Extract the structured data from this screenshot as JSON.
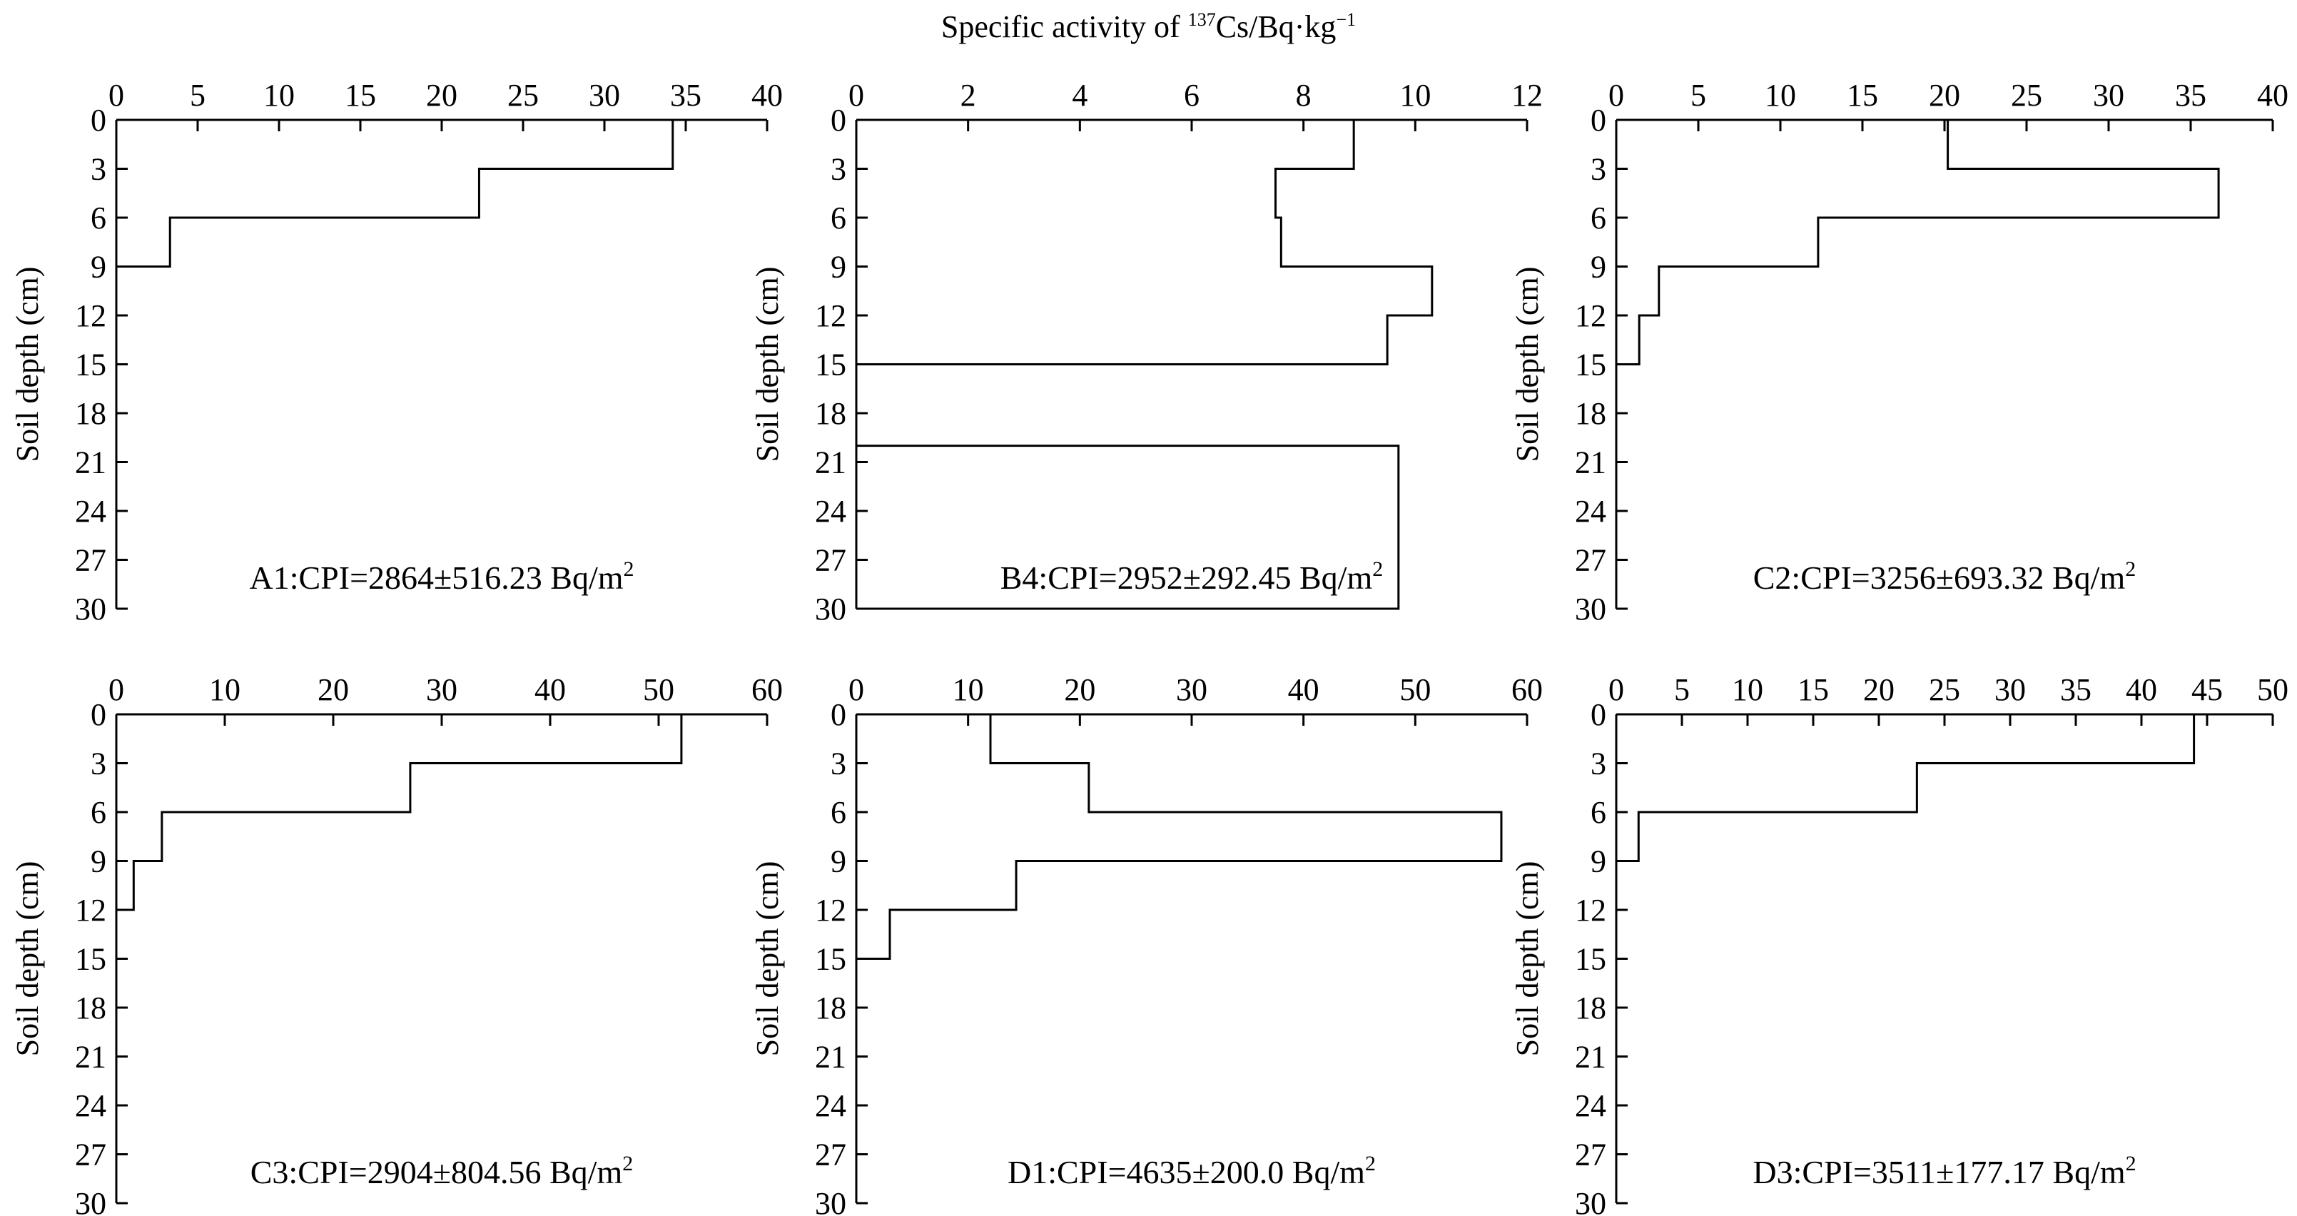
{
  "figure": {
    "title_prefix": "Specific activity of ",
    "title_isotope_mass": "137",
    "title_isotope_rest": "Cs/Bq·kg",
    "title_unit_exp": "−1"
  },
  "chart_data": [
    {
      "id": "A1",
      "type": "line",
      "step": true,
      "xlim": [
        0,
        40
      ],
      "xticks": [
        0,
        5,
        10,
        15,
        20,
        25,
        30,
        35,
        40
      ],
      "ylim": [
        0,
        30
      ],
      "yticks": [
        0,
        3,
        6,
        9,
        12,
        15,
        18,
        21,
        24,
        27,
        30
      ],
      "ylabel": "Soil depth (cm)",
      "annotation": "A1:CPI=2864±516.23 Bq/m",
      "annotation_sup": "2",
      "segments": [
        {
          "from": 0,
          "to": 3,
          "value": 34.2
        },
        {
          "from": 3,
          "to": 6,
          "value": 22.3
        },
        {
          "from": 6,
          "to": 9,
          "value": 3.3
        }
      ]
    },
    {
      "id": "B4",
      "type": "line",
      "step": true,
      "xlim": [
        0,
        12
      ],
      "xticks": [
        0,
        2,
        4,
        6,
        8,
        10,
        12
      ],
      "ylim": [
        0,
        30
      ],
      "yticks": [
        0,
        3,
        6,
        9,
        12,
        15,
        18,
        21,
        24,
        27,
        30
      ],
      "ylabel": "Soil depth (cm)",
      "annotation": "B4:CPI=2952±292.45 Bq/m",
      "annotation_sup": "2",
      "segments": [
        {
          "from": 0,
          "to": 3,
          "value": 8.9
        },
        {
          "from": 3,
          "to": 6,
          "value": 7.5
        },
        {
          "from": 6,
          "to": 9,
          "value": 7.6
        },
        {
          "from": 9,
          "to": 12,
          "value": 10.3
        },
        {
          "from": 12,
          "to": 15,
          "value": 9.5
        },
        {
          "from": 20,
          "to": 30,
          "value": 9.7
        }
      ]
    },
    {
      "id": "C2",
      "type": "line",
      "step": true,
      "xlim": [
        0,
        40
      ],
      "xticks": [
        0,
        5,
        10,
        15,
        20,
        25,
        30,
        35,
        40
      ],
      "ylim": [
        0,
        30
      ],
      "yticks": [
        0,
        3,
        6,
        9,
        12,
        15,
        18,
        21,
        24,
        27,
        30
      ],
      "ylabel": "Soil depth (cm)",
      "annotation": "C2:CPI=3256±693.32 Bq/m",
      "annotation_sup": "2",
      "segments": [
        {
          "from": 0,
          "to": 3,
          "value": 20.2
        },
        {
          "from": 3,
          "to": 6,
          "value": 36.7
        },
        {
          "from": 6,
          "to": 9,
          "value": 12.3
        },
        {
          "from": 9,
          "to": 12,
          "value": 2.6
        },
        {
          "from": 12,
          "to": 15,
          "value": 1.4
        }
      ]
    },
    {
      "id": "C3",
      "type": "line",
      "step": true,
      "xlim": [
        0,
        60
      ],
      "xticks": [
        0,
        10,
        20,
        30,
        40,
        50,
        60
      ],
      "ylim": [
        0,
        30
      ],
      "yticks": [
        0,
        3,
        6,
        9,
        12,
        15,
        18,
        21,
        24,
        27,
        30
      ],
      "ylabel": "Soil depth (cm)",
      "annotation": "C3:CPI=2904±804.56 Bq/m",
      "annotation_sup": "2",
      "segments": [
        {
          "from": 0,
          "to": 3,
          "value": 52.1
        },
        {
          "from": 3,
          "to": 6,
          "value": 27.1
        },
        {
          "from": 6,
          "to": 9,
          "value": 4.2
        },
        {
          "from": 9,
          "to": 12,
          "value": 1.6
        }
      ]
    },
    {
      "id": "D1",
      "type": "line",
      "step": true,
      "xlim": [
        0,
        60
      ],
      "xticks": [
        0,
        10,
        20,
        30,
        40,
        50,
        60
      ],
      "ylim": [
        0,
        30
      ],
      "yticks": [
        0,
        3,
        6,
        9,
        12,
        15,
        18,
        21,
        24,
        27,
        30
      ],
      "ylabel": "Soil depth (cm)",
      "annotation": "D1:CPI=4635±200.0 Bq/m",
      "annotation_sup": "2",
      "segments": [
        {
          "from": 0,
          "to": 3,
          "value": 12.0
        },
        {
          "from": 3,
          "to": 6,
          "value": 20.8
        },
        {
          "from": 6,
          "to": 9,
          "value": 57.7
        },
        {
          "from": 9,
          "to": 12,
          "value": 14.3
        },
        {
          "from": 12,
          "to": 15,
          "value": 3.0
        }
      ]
    },
    {
      "id": "D3",
      "type": "line",
      "step": true,
      "xlim": [
        0,
        50
      ],
      "xticks": [
        0,
        5,
        10,
        15,
        20,
        25,
        30,
        35,
        40,
        45,
        50
      ],
      "ylim": [
        0,
        30
      ],
      "yticks": [
        0,
        3,
        6,
        9,
        12,
        15,
        18,
        21,
        24,
        27,
        30
      ],
      "ylabel": "Soil depth (cm)",
      "annotation": "D3:CPI=3511±177.17 Bq/m",
      "annotation_sup": "2",
      "segments": [
        {
          "from": 0,
          "to": 3,
          "value": 44.0
        },
        {
          "from": 3,
          "to": 6,
          "value": 22.9
        },
        {
          "from": 6,
          "to": 9,
          "value": 1.7
        }
      ]
    }
  ]
}
